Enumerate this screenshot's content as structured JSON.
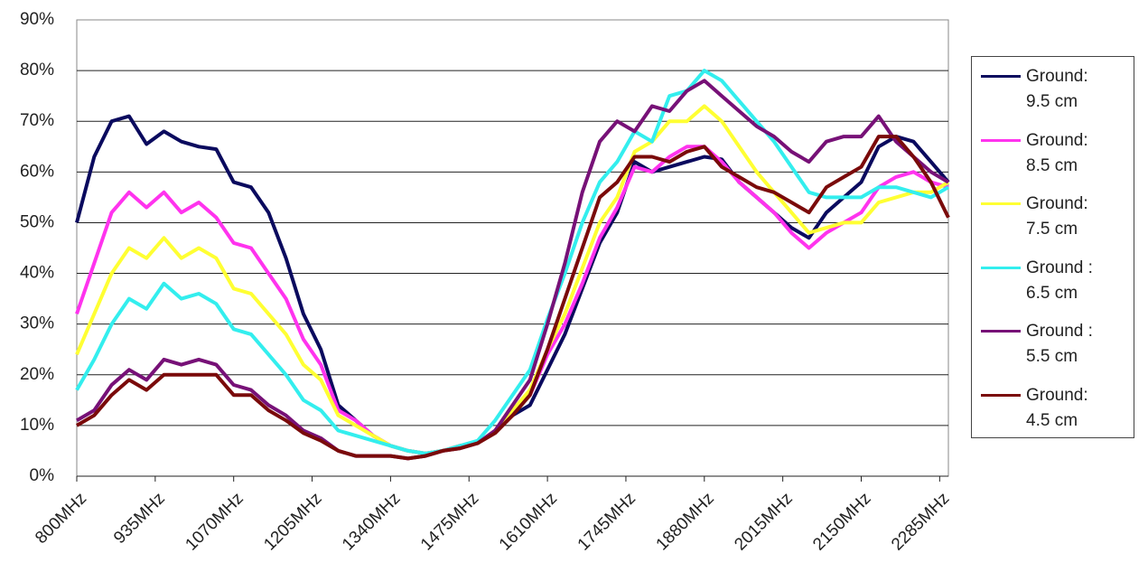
{
  "chart_data": {
    "type": "line",
    "x": [
      800,
      830,
      860,
      890,
      920,
      950,
      980,
      1010,
      1040,
      1070,
      1100,
      1130,
      1160,
      1190,
      1220,
      1250,
      1280,
      1310,
      1340,
      1370,
      1400,
      1430,
      1460,
      1490,
      1520,
      1550,
      1580,
      1610,
      1640,
      1670,
      1700,
      1730,
      1760,
      1790,
      1820,
      1850,
      1880,
      1910,
      1940,
      1970,
      2000,
      2030,
      2060,
      2090,
      2120,
      2150,
      2180,
      2210,
      2240,
      2270,
      2300
    ],
    "xlim": [
      800,
      2300
    ],
    "xticks": [
      {
        "value": 800,
        "label": "800MHz"
      },
      {
        "value": 935,
        "label": "935MHz"
      },
      {
        "value": 1070,
        "label": "1070MHz"
      },
      {
        "value": 1205,
        "label": "1205MHz"
      },
      {
        "value": 1340,
        "label": "1340MHz"
      },
      {
        "value": 1475,
        "label": "1475MHz"
      },
      {
        "value": 1610,
        "label": "1610MHz"
      },
      {
        "value": 1745,
        "label": "1745MHz"
      },
      {
        "value": 1880,
        "label": "1880MHz"
      },
      {
        "value": 2015,
        "label": "2015MHz"
      },
      {
        "value": 2150,
        "label": "2150MHz"
      },
      {
        "value": 2285,
        "label": "2285MHz"
      }
    ],
    "ylim": [
      0,
      90
    ],
    "yticks": [
      {
        "value": 0,
        "label": "0%"
      },
      {
        "value": 10,
        "label": "10%"
      },
      {
        "value": 20,
        "label": "20%"
      },
      {
        "value": 30,
        "label": "30%"
      },
      {
        "value": 40,
        "label": "40%"
      },
      {
        "value": 50,
        "label": "50%"
      },
      {
        "value": 60,
        "label": "60%"
      },
      {
        "value": 70,
        "label": "70%"
      },
      {
        "value": 80,
        "label": "80%"
      },
      {
        "value": 90,
        "label": "90%"
      }
    ],
    "grid": true,
    "legend": "right",
    "series": [
      {
        "name": "Ground: 9.5 cm",
        "color": "#0a0a5e",
        "values": [
          50,
          63,
          70,
          71,
          65.5,
          68,
          66,
          65,
          64.5,
          58,
          57,
          52,
          43,
          32,
          25,
          14,
          11,
          8,
          6,
          5,
          4.5,
          5,
          6,
          6.5,
          9,
          12,
          14,
          21,
          28,
          37,
          46,
          52,
          62,
          60,
          61,
          62,
          63,
          62.5,
          58,
          55,
          52,
          49,
          47,
          52,
          55,
          58,
          65,
          67,
          66,
          62,
          58
        ]
      },
      {
        "name": "Ground: 8.5 cm",
        "color": "#ff33ee",
        "values": [
          32,
          42,
          52,
          56,
          53,
          56,
          52,
          54,
          51,
          46,
          45,
          40,
          35,
          27,
          22,
          13,
          11,
          8,
          6,
          5,
          4.5,
          5,
          6,
          6.5,
          9,
          13,
          16,
          24,
          30,
          38,
          47,
          53,
          61,
          60,
          63,
          65,
          65,
          62,
          58,
          55,
          52,
          48,
          45,
          48,
          50,
          52,
          57,
          59,
          60,
          58,
          57
        ]
      },
      {
        "name": "Ground: 7.5 cm",
        "color": "#ffff33",
        "values": [
          24,
          32,
          40,
          45,
          43,
          47,
          43,
          45,
          43,
          37,
          36,
          32,
          28,
          22,
          19,
          12,
          10,
          8,
          6,
          5,
          4.5,
          5,
          6,
          6.5,
          9,
          13,
          17,
          25,
          32,
          41,
          50,
          55,
          64,
          66,
          70,
          70,
          73,
          70,
          65,
          60,
          56,
          52,
          48,
          49,
          50,
          50,
          54,
          55,
          56,
          56,
          58
        ]
      },
      {
        "name": "Ground : 6.5 cm",
        "color": "#33eeee",
        "values": [
          17,
          23,
          30,
          35,
          33,
          38,
          35,
          36,
          34,
          29,
          28,
          24,
          20,
          15,
          13,
          9,
          8,
          7,
          6,
          5,
          4.5,
          5,
          6,
          7,
          11,
          16,
          21,
          31,
          40,
          50,
          58,
          62,
          68,
          66,
          75,
          76,
          80,
          78,
          74,
          70,
          66,
          61,
          56,
          55,
          55,
          55,
          57,
          57,
          56,
          55,
          57
        ]
      },
      {
        "name": "Ground : 5.5 cm",
        "color": "#771177",
        "values": [
          11,
          13,
          18,
          21,
          19,
          23,
          22,
          23,
          22,
          18,
          17,
          14,
          12,
          9,
          7.5,
          5,
          4,
          4,
          4,
          3.5,
          4,
          5,
          5.5,
          6.5,
          9,
          14,
          19,
          30,
          42,
          56,
          66,
          70,
          68,
          73,
          72,
          76,
          78,
          75,
          72,
          69,
          67,
          64,
          62,
          66,
          67,
          67,
          71,
          66,
          63,
          60,
          58
        ]
      },
      {
        "name": "Ground: 4.5 cm",
        "color": "#7a0a0a",
        "values": [
          10,
          12,
          16,
          19,
          17,
          20,
          20,
          20,
          20,
          16,
          16,
          13,
          11,
          8.5,
          7,
          5,
          4,
          4,
          4,
          3.5,
          4,
          5,
          5.5,
          6.5,
          8.5,
          12,
          16,
          25,
          35,
          45,
          55,
          58,
          63,
          63,
          62,
          64,
          65,
          61,
          59,
          57,
          56,
          54,
          52,
          57,
          59,
          61,
          67,
          67,
          63,
          58,
          51
        ]
      }
    ]
  }
}
